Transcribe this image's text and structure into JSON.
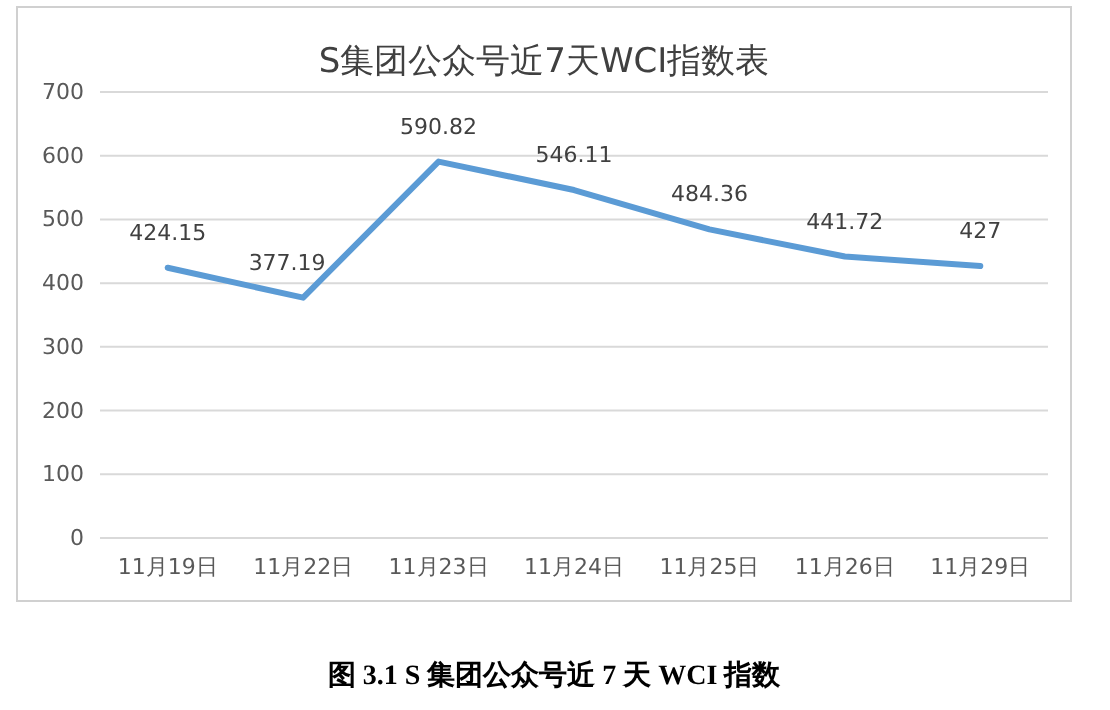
{
  "chart_data": {
    "type": "line",
    "title": "S集团公众号近7天WCI指数表",
    "categories": [
      "11月19日",
      "11月22日",
      "11月23日",
      "11月24日",
      "11月25日",
      "11月26日",
      "11月29日"
    ],
    "values": [
      424.15,
      377.19,
      590.82,
      546.11,
      484.36,
      441.72,
      427
    ],
    "color": "#5b9bd5",
    "ylim": [
      0,
      700
    ],
    "yticks": [
      0,
      100,
      200,
      300,
      400,
      500,
      600,
      700
    ],
    "grid": "y",
    "data_labels": true,
    "marker": "none",
    "line_style": "solid",
    "annotations": [
      "图 3.1 S 集团公众号近 7 天 WCI 指数"
    ]
  }
}
